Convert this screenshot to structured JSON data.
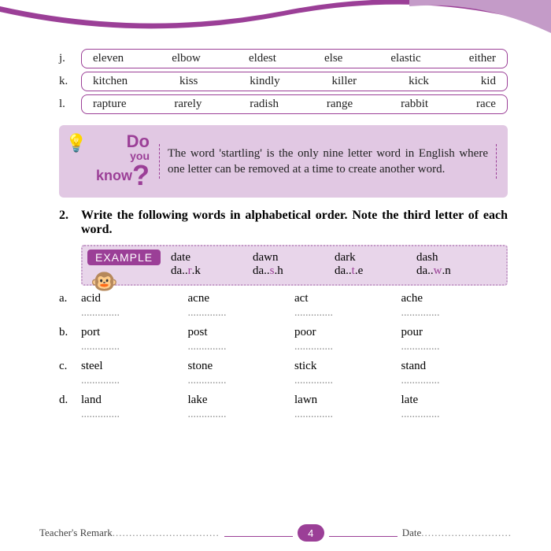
{
  "colors": {
    "accent": "#9b3f97",
    "box_bg": "#e1c8e3",
    "example_bg": "#e8d5ea",
    "text": "#222222"
  },
  "word_rows": [
    {
      "label": "j.",
      "words": [
        "eleven",
        "elbow",
        "eldest",
        "else",
        "elastic",
        "either"
      ]
    },
    {
      "label": "k.",
      "words": [
        "kitchen",
        "kiss",
        "kindly",
        "killer",
        "kick",
        "kid"
      ]
    },
    {
      "label": "l.",
      "words": [
        "rapture",
        "rarely",
        "radish",
        "range",
        "rabbit",
        "race"
      ]
    }
  ],
  "do_you_know": {
    "badge": {
      "do": "Do",
      "you": "you",
      "know": "know",
      "q": "?"
    },
    "text": "The word 'startling' is the only nine letter word in English where one letter can be removed at a time to create another word."
  },
  "question": {
    "num": "2.",
    "text": "Write the following words in alphabetical order. Note the third letter of each word."
  },
  "example": {
    "label": "EXAMPLE",
    "row1": [
      "date",
      "dawn",
      "dark",
      "dash"
    ],
    "row2_pre": [
      "da..",
      "da..",
      "da..",
      "da.."
    ],
    "row2_ans": [
      "r",
      "s",
      "t",
      "w"
    ],
    "row2_suf": [
      ".k",
      ".h",
      ".e",
      ".n"
    ]
  },
  "exercises": [
    {
      "label": "a.",
      "words": [
        "acid",
        "acne",
        "act",
        "ache"
      ]
    },
    {
      "label": "b.",
      "words": [
        "port",
        "post",
        "poor",
        "pour"
      ]
    },
    {
      "label": "c.",
      "words": [
        "steel",
        "stone",
        "stick",
        "stand"
      ]
    },
    {
      "label": "d.",
      "words": [
        "land",
        "lake",
        "lawn",
        "late"
      ]
    }
  ],
  "dots": "..............",
  "footer": {
    "remark": "Teacher's Remark",
    "remark_dots": "................................",
    "page": "4",
    "date": "Date",
    "date_dots": "..........................."
  }
}
